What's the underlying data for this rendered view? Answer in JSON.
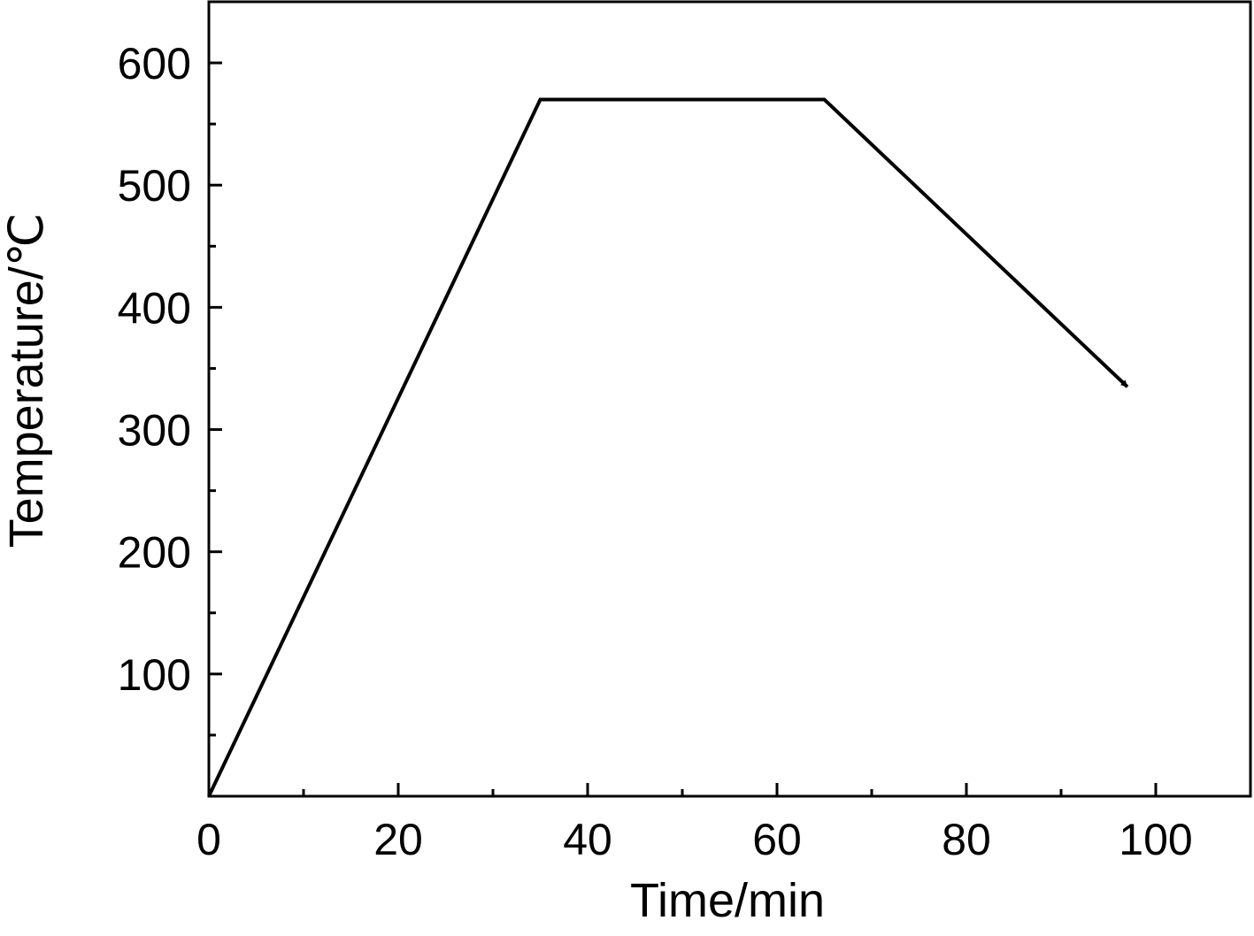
{
  "chart_data": {
    "type": "line",
    "x_label": "Time/min",
    "y_label": "Temperature/℃",
    "x": [
      0,
      35,
      65,
      97
    ],
    "series": [
      {
        "color": "#000000",
        "values": [
          0,
          570,
          570,
          335
        ]
      }
    ],
    "arrow_end": true,
    "xlim": [
      0,
      110
    ],
    "ylim": [
      0,
      650
    ],
    "xticks": [
      0,
      20,
      40,
      60,
      80,
      100
    ],
    "yticks": [
      100,
      200,
      300,
      400,
      500,
      600
    ],
    "xminorticks": [
      10,
      30,
      50,
      70,
      90
    ],
    "yminorticks": [
      50,
      150,
      250,
      350,
      450,
      550
    ],
    "grid": false
  }
}
